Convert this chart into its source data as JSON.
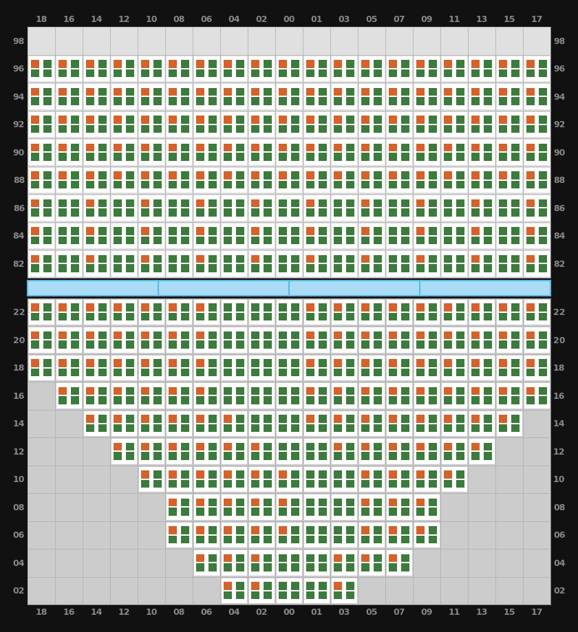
{
  "cols": [
    18,
    16,
    14,
    12,
    10,
    8,
    6,
    4,
    2,
    0,
    1,
    3,
    5,
    7,
    9,
    11,
    13,
    15,
    17
  ],
  "col_labels": [
    "18",
    "16",
    "14",
    "12",
    "10",
    "08",
    "06",
    "04",
    "02",
    "00",
    "01",
    "03",
    "05",
    "07",
    "09",
    "11",
    "13",
    "15",
    "17"
  ],
  "top_rows": [
    98,
    96,
    94,
    92,
    90,
    88,
    86,
    84,
    82
  ],
  "top_row_labels": [
    "98",
    "96",
    "94",
    "92",
    "90",
    "88",
    "86",
    "84",
    "82"
  ],
  "bottom_rows": [
    22,
    20,
    18,
    16,
    14,
    12,
    10,
    8,
    6,
    4,
    2
  ],
  "bottom_row_labels": [
    "22",
    "20",
    "18",
    "16",
    "14",
    "12",
    "10",
    "08",
    "06",
    "04",
    "02"
  ],
  "orange_color": "#d4622a",
  "green_color": "#3d7a3d",
  "cell_bg": "#ffffff",
  "grid_bg_top": "#e0e0e0",
  "grid_bg_bottom": "#cccccc",
  "outer_bg": "#111111",
  "separator_color": "#5bb8e8",
  "separator_bg": "#aaddf5",
  "top_shape": {
    "98": [],
    "96": [
      0,
      1,
      2,
      3,
      4,
      5,
      6,
      7,
      8,
      9,
      10,
      11,
      12,
      13,
      14,
      15,
      16,
      17,
      18
    ],
    "94": [
      0,
      1,
      2,
      3,
      4,
      5,
      6,
      7,
      8,
      9,
      10,
      11,
      12,
      13,
      14,
      15,
      16,
      17,
      18
    ],
    "92": [
      0,
      1,
      2,
      3,
      4,
      5,
      6,
      7,
      8,
      9,
      10,
      11,
      12,
      13,
      14,
      15,
      16,
      17,
      18
    ],
    "90": [
      0,
      1,
      2,
      3,
      4,
      5,
      6,
      7,
      8,
      9,
      10,
      11,
      12,
      13,
      14,
      15,
      16,
      17,
      18
    ],
    "88": [
      0,
      1,
      2,
      3,
      4,
      5,
      6,
      7,
      8,
      9,
      10,
      11,
      12,
      13,
      14,
      15,
      16,
      17,
      18
    ],
    "86": [
      0,
      1,
      2,
      3,
      4,
      5,
      6,
      7,
      8,
      9,
      10,
      11,
      12,
      13,
      14,
      15,
      16,
      17,
      18
    ],
    "84": [
      0,
      1,
      2,
      3,
      4,
      5,
      6,
      7,
      8,
      9,
      10,
      11,
      12,
      13,
      14,
      15,
      16,
      17,
      18
    ],
    "82": [
      0,
      1,
      2,
      3,
      4,
      5,
      6,
      7,
      8,
      9,
      10,
      11,
      12,
      13,
      14,
      15,
      16,
      17,
      18
    ]
  },
  "top_orange": {
    "96": [
      1,
      1,
      1,
      1,
      1,
      1,
      1,
      1,
      1,
      1,
      1,
      1,
      1,
      1,
      1,
      1,
      1,
      1,
      1
    ],
    "94": [
      1,
      1,
      1,
      1,
      1,
      1,
      1,
      1,
      1,
      1,
      1,
      1,
      1,
      1,
      1,
      1,
      1,
      1,
      1
    ],
    "92": [
      1,
      1,
      1,
      1,
      1,
      1,
      1,
      1,
      1,
      1,
      1,
      1,
      1,
      1,
      1,
      1,
      1,
      1,
      1
    ],
    "90": [
      1,
      1,
      1,
      1,
      1,
      1,
      1,
      1,
      1,
      1,
      1,
      1,
      1,
      1,
      1,
      1,
      1,
      1,
      1
    ],
    "88": [
      1,
      1,
      1,
      1,
      1,
      1,
      1,
      1,
      1,
      1,
      1,
      1,
      1,
      1,
      1,
      1,
      1,
      1,
      1
    ],
    "86": [
      1,
      0,
      1,
      0,
      1,
      0,
      1,
      0,
      1,
      0,
      1,
      0,
      1,
      0,
      1,
      0,
      1,
      0,
      1
    ],
    "84": [
      1,
      0,
      1,
      0,
      1,
      0,
      1,
      0,
      1,
      0,
      1,
      0,
      1,
      0,
      1,
      0,
      1,
      0,
      1
    ],
    "82": [
      1,
      0,
      1,
      0,
      1,
      0,
      1,
      0,
      1,
      0,
      1,
      0,
      1,
      0,
      1,
      0,
      1,
      0,
      1
    ]
  },
  "bottom_shape": {
    "22": [
      0,
      1,
      2,
      3,
      4,
      5,
      6,
      7,
      8,
      9,
      10,
      11,
      12,
      13,
      14,
      15,
      16,
      17,
      18
    ],
    "20": [
      0,
      1,
      2,
      3,
      4,
      5,
      6,
      7,
      8,
      9,
      10,
      11,
      12,
      13,
      14,
      15,
      16,
      17,
      18
    ],
    "18": [
      0,
      1,
      2,
      3,
      4,
      5,
      6,
      7,
      8,
      9,
      10,
      11,
      12,
      13,
      14,
      15,
      16,
      17,
      18
    ],
    "16": [
      1,
      2,
      3,
      4,
      5,
      6,
      7,
      8,
      9,
      10,
      11,
      12,
      13,
      14,
      15,
      16,
      17,
      18
    ],
    "14": [
      2,
      3,
      4,
      5,
      6,
      7,
      8,
      9,
      10,
      11,
      12,
      13,
      14,
      15,
      16,
      17
    ],
    "12": [
      3,
      4,
      5,
      6,
      7,
      8,
      9,
      10,
      11,
      12,
      13,
      14,
      15,
      16
    ],
    "10": [
      4,
      5,
      6,
      7,
      8,
      9,
      10,
      11,
      12,
      13,
      14,
      15
    ],
    "8": [
      5,
      6,
      7,
      8,
      9,
      10,
      11,
      12,
      13,
      14
    ],
    "6": [
      5,
      6,
      7,
      8,
      9,
      10,
      11,
      12,
      13,
      14
    ],
    "4": [
      6,
      7,
      8,
      9,
      10,
      11,
      12,
      13
    ],
    "2": [
      7,
      8,
      9,
      10,
      11
    ]
  },
  "bottom_orange": {
    "22": [
      1,
      1,
      1,
      1,
      1,
      1,
      1,
      0,
      0,
      0,
      1,
      1,
      1,
      1,
      1,
      1,
      1,
      1,
      1
    ],
    "20": [
      1,
      1,
      1,
      1,
      1,
      1,
      1,
      0,
      0,
      0,
      1,
      1,
      1,
      1,
      1,
      1,
      1,
      1,
      1
    ],
    "18": [
      1,
      1,
      1,
      1,
      1,
      1,
      1,
      0,
      0,
      0,
      1,
      1,
      1,
      1,
      1,
      1,
      1,
      1,
      1
    ],
    "16": [
      1,
      1,
      1,
      1,
      1,
      1,
      0,
      0,
      0,
      1,
      1,
      1,
      1,
      1,
      1,
      1,
      1,
      1
    ],
    "14": [
      1,
      1,
      1,
      1,
      1,
      1,
      0,
      0,
      1,
      1,
      1,
      1,
      1,
      1,
      1,
      1
    ],
    "12": [
      1,
      1,
      1,
      1,
      1,
      1,
      0,
      0,
      1,
      1,
      1,
      1,
      1,
      1
    ],
    "10": [
      1,
      1,
      1,
      1,
      1,
      1,
      0,
      0,
      1,
      1,
      1,
      1
    ],
    "8": [
      1,
      1,
      1,
      1,
      1,
      0,
      0,
      1,
      1,
      1
    ],
    "6": [
      1,
      1,
      1,
      1,
      1,
      0,
      0,
      1,
      1,
      1
    ],
    "4": [
      1,
      1,
      1,
      0,
      0,
      1,
      1,
      1
    ],
    "2": [
      1,
      1,
      0,
      0,
      1
    ]
  }
}
